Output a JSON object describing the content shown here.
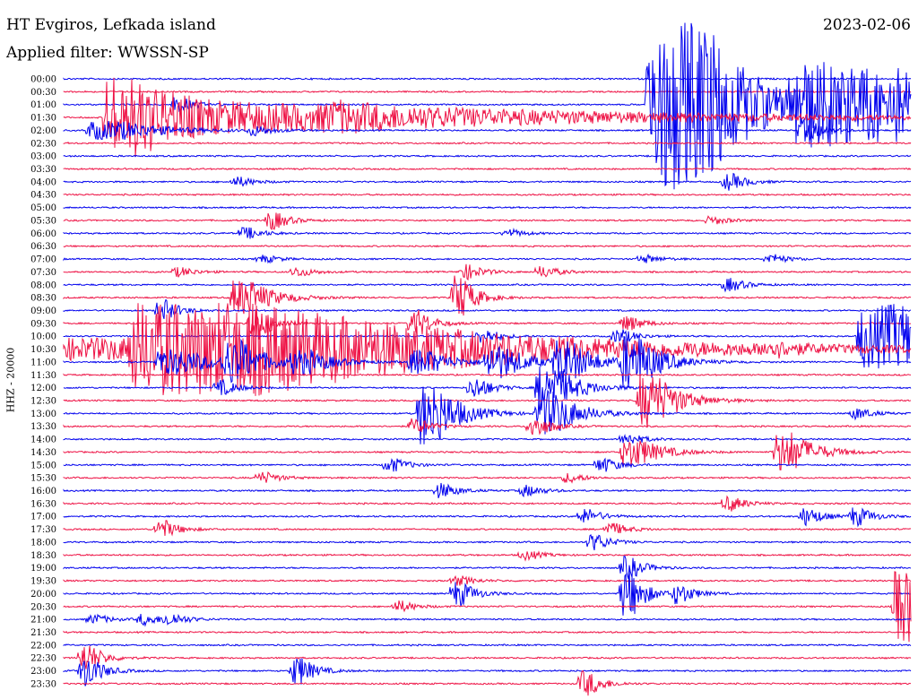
{
  "header": {
    "station": "HT Evgiros, Lefkada island",
    "filter": "Applied filter: WWSSN-SP",
    "date": "2023-02-06"
  },
  "channel_label": "HHZ - 20000",
  "colors": {
    "odd": "#0000ee",
    "even": "#ee1144"
  },
  "chart_data": {
    "type": "line",
    "title": "HT Evgiros, Lefkada island",
    "subtitle": "Applied filter: WWSSN-SP",
    "ylabel": "HHZ - 20000",
    "xlabel": "",
    "grid": false,
    "tick_labels": [
      "00:00",
      "00:30",
      "01:00",
      "01:30",
      "02:00",
      "02:30",
      "03:00",
      "03:30",
      "04:00",
      "04:30",
      "05:00",
      "05:30",
      "06:00",
      "06:30",
      "07:00",
      "07:30",
      "08:00",
      "08:30",
      "09:00",
      "09:30",
      "10:00",
      "10:30",
      "11:00",
      "11:30",
      "12:00",
      "12:30",
      "13:00",
      "13:30",
      "14:00",
      "14:30",
      "15:00",
      "15:30",
      "16:00",
      "16:30",
      "17:00",
      "17:30",
      "18:00",
      "18:30",
      "19:00",
      "19:30",
      "20:00",
      "20:30",
      "21:00",
      "21:30",
      "22:00",
      "22:30",
      "23:00",
      "23:30"
    ],
    "row_duration_minutes": 30,
    "bursts": [
      {
        "row": 2,
        "t": 0.69,
        "amp": 95,
        "dur": 0.07,
        "decay": 0.12
      },
      {
        "row": 2,
        "t": 0.13,
        "amp": 8,
        "dur": 0.01
      },
      {
        "row": 3,
        "t": 0.05,
        "amp": 14,
        "dur": 0.32,
        "decay": 0.8
      },
      {
        "row": 3,
        "t": 0.05,
        "amp": 30,
        "dur": 0.04
      },
      {
        "row": 3,
        "t": 0.31,
        "amp": 5,
        "dur": 0.02
      },
      {
        "row": 2,
        "t": 0.86,
        "amp": 40,
        "dur": 0.14,
        "decay": 0.5
      },
      {
        "row": 4,
        "t": 0.03,
        "amp": 10,
        "dur": 0.04
      },
      {
        "row": 4,
        "t": 0.22,
        "amp": 5,
        "dur": 0.01
      },
      {
        "row": 4,
        "t": 0.87,
        "amp": 12,
        "dur": 0.01
      },
      {
        "row": 8,
        "t": 0.2,
        "amp": 5,
        "dur": 0.01
      },
      {
        "row": 8,
        "t": 0.78,
        "amp": 9,
        "dur": 0.01
      },
      {
        "row": 11,
        "t": 0.24,
        "amp": 10,
        "dur": 0.01
      },
      {
        "row": 11,
        "t": 0.76,
        "amp": 4,
        "dur": 0.01
      },
      {
        "row": 12,
        "t": 0.21,
        "amp": 6,
        "dur": 0.01
      },
      {
        "row": 12,
        "t": 0.52,
        "amp": 4,
        "dur": 0.01
      },
      {
        "row": 14,
        "t": 0.23,
        "amp": 4,
        "dur": 0.01
      },
      {
        "row": 14,
        "t": 0.68,
        "amp": 4,
        "dur": 0.01
      },
      {
        "row": 14,
        "t": 0.83,
        "amp": 5,
        "dur": 0.01
      },
      {
        "row": 15,
        "t": 0.13,
        "amp": 5,
        "dur": 0.01
      },
      {
        "row": 15,
        "t": 0.27,
        "amp": 5,
        "dur": 0.01
      },
      {
        "row": 15,
        "t": 0.47,
        "amp": 8,
        "dur": 0.01
      },
      {
        "row": 15,
        "t": 0.56,
        "amp": 6,
        "dur": 0.01
      },
      {
        "row": 16,
        "t": 0.78,
        "amp": 7,
        "dur": 0.01
      },
      {
        "row": 17,
        "t": 0.2,
        "amp": 20,
        "dur": 0.02
      },
      {
        "row": 17,
        "t": 0.46,
        "amp": 25,
        "dur": 0.01
      },
      {
        "row": 18,
        "t": 0.11,
        "amp": 12,
        "dur": 0.01
      },
      {
        "row": 19,
        "t": 0.22,
        "amp": 20,
        "dur": 0.01
      },
      {
        "row": 19,
        "t": 0.41,
        "amp": 15,
        "dur": 0.01
      },
      {
        "row": 19,
        "t": 0.66,
        "amp": 8,
        "dur": 0.01
      },
      {
        "row": 20,
        "t": 0.49,
        "amp": 8,
        "dur": 0.01
      },
      {
        "row": 20,
        "t": 0.65,
        "amp": 8,
        "dur": 0.01
      },
      {
        "row": 20,
        "t": 0.94,
        "amp": 35,
        "dur": 0.06,
        "decay": 0.2
      },
      {
        "row": 21,
        "t": 0.0,
        "amp": 12,
        "dur": 0.35,
        "decay": 1.0
      },
      {
        "row": 21,
        "t": 0.08,
        "amp": 40,
        "dur": 0.15,
        "decay": 0.5
      },
      {
        "row": 21,
        "t": 0.83,
        "amp": 6,
        "dur": 0.01
      },
      {
        "row": 22,
        "t": 0.11,
        "amp": 14,
        "dur": 0.03
      },
      {
        "row": 22,
        "t": 0.19,
        "amp": 22,
        "dur": 0.02
      },
      {
        "row": 22,
        "t": 0.27,
        "amp": 12,
        "dur": 0.02
      },
      {
        "row": 22,
        "t": 0.41,
        "amp": 14,
        "dur": 0.02
      },
      {
        "row": 22,
        "t": 0.5,
        "amp": 18,
        "dur": 0.02
      },
      {
        "row": 22,
        "t": 0.58,
        "amp": 22,
        "dur": 0.02
      },
      {
        "row": 22,
        "t": 0.66,
        "amp": 28,
        "dur": 0.02
      },
      {
        "row": 24,
        "t": 0.18,
        "amp": 8,
        "dur": 0.01
      },
      {
        "row": 24,
        "t": 0.48,
        "amp": 12,
        "dur": 0.01
      },
      {
        "row": 24,
        "t": 0.56,
        "amp": 25,
        "dur": 0.02
      },
      {
        "row": 25,
        "t": 0.68,
        "amp": 30,
        "dur": 0.02
      },
      {
        "row": 26,
        "t": 0.42,
        "amp": 35,
        "dur": 0.02
      },
      {
        "row": 26,
        "t": 0.56,
        "amp": 25,
        "dur": 0.02
      },
      {
        "row": 26,
        "t": 0.93,
        "amp": 6,
        "dur": 0.01
      },
      {
        "row": 27,
        "t": 0.55,
        "amp": 12,
        "dur": 0.01
      },
      {
        "row": 27,
        "t": 0.41,
        "amp": 8,
        "dur": 0.01
      },
      {
        "row": 28,
        "t": 0.66,
        "amp": 6,
        "dur": 0.01
      },
      {
        "row": 29,
        "t": 0.66,
        "amp": 15,
        "dur": 0.02
      },
      {
        "row": 29,
        "t": 0.84,
        "amp": 22,
        "dur": 0.02
      },
      {
        "row": 30,
        "t": 0.38,
        "amp": 8,
        "dur": 0.01
      },
      {
        "row": 30,
        "t": 0.63,
        "amp": 8,
        "dur": 0.01
      },
      {
        "row": 31,
        "t": 0.23,
        "amp": 6,
        "dur": 0.01
      },
      {
        "row": 31,
        "t": 0.59,
        "amp": 5,
        "dur": 0.01
      },
      {
        "row": 32,
        "t": 0.44,
        "amp": 8,
        "dur": 0.01
      },
      {
        "row": 32,
        "t": 0.54,
        "amp": 6,
        "dur": 0.01
      },
      {
        "row": 33,
        "t": 0.78,
        "amp": 8,
        "dur": 0.01
      },
      {
        "row": 34,
        "t": 0.61,
        "amp": 8,
        "dur": 0.01
      },
      {
        "row": 34,
        "t": 0.87,
        "amp": 10,
        "dur": 0.01
      },
      {
        "row": 34,
        "t": 0.93,
        "amp": 10,
        "dur": 0.01
      },
      {
        "row": 35,
        "t": 0.11,
        "amp": 10,
        "dur": 0.01
      },
      {
        "row": 35,
        "t": 0.64,
        "amp": 7,
        "dur": 0.01
      },
      {
        "row": 36,
        "t": 0.62,
        "amp": 9,
        "dur": 0.01
      },
      {
        "row": 37,
        "t": 0.54,
        "amp": 5,
        "dur": 0.01
      },
      {
        "row": 38,
        "t": 0.66,
        "amp": 12,
        "dur": 0.01
      },
      {
        "row": 39,
        "t": 0.46,
        "amp": 5,
        "dur": 0.01
      },
      {
        "row": 40,
        "t": 0.46,
        "amp": 14,
        "dur": 0.01
      },
      {
        "row": 40,
        "t": 0.66,
        "amp": 28,
        "dur": 0.01
      },
      {
        "row": 40,
        "t": 0.72,
        "amp": 10,
        "dur": 0.01
      },
      {
        "row": 41,
        "t": 0.39,
        "amp": 6,
        "dur": 0.01
      },
      {
        "row": 41,
        "t": 0.98,
        "amp": 40,
        "dur": 0.02
      },
      {
        "row": 42,
        "t": 0.03,
        "amp": 5,
        "dur": 0.01
      },
      {
        "row": 42,
        "t": 0.09,
        "amp": 6,
        "dur": 0.01
      },
      {
        "row": 42,
        "t": 0.12,
        "amp": 6,
        "dur": 0.01
      },
      {
        "row": 45,
        "t": 0.02,
        "amp": 16,
        "dur": 0.01
      },
      {
        "row": 46,
        "t": 0.02,
        "amp": 18,
        "dur": 0.01
      },
      {
        "row": 46,
        "t": 0.27,
        "amp": 16,
        "dur": 0.01
      },
      {
        "row": 47,
        "t": 0.61,
        "amp": 14,
        "dur": 0.01
      }
    ]
  }
}
